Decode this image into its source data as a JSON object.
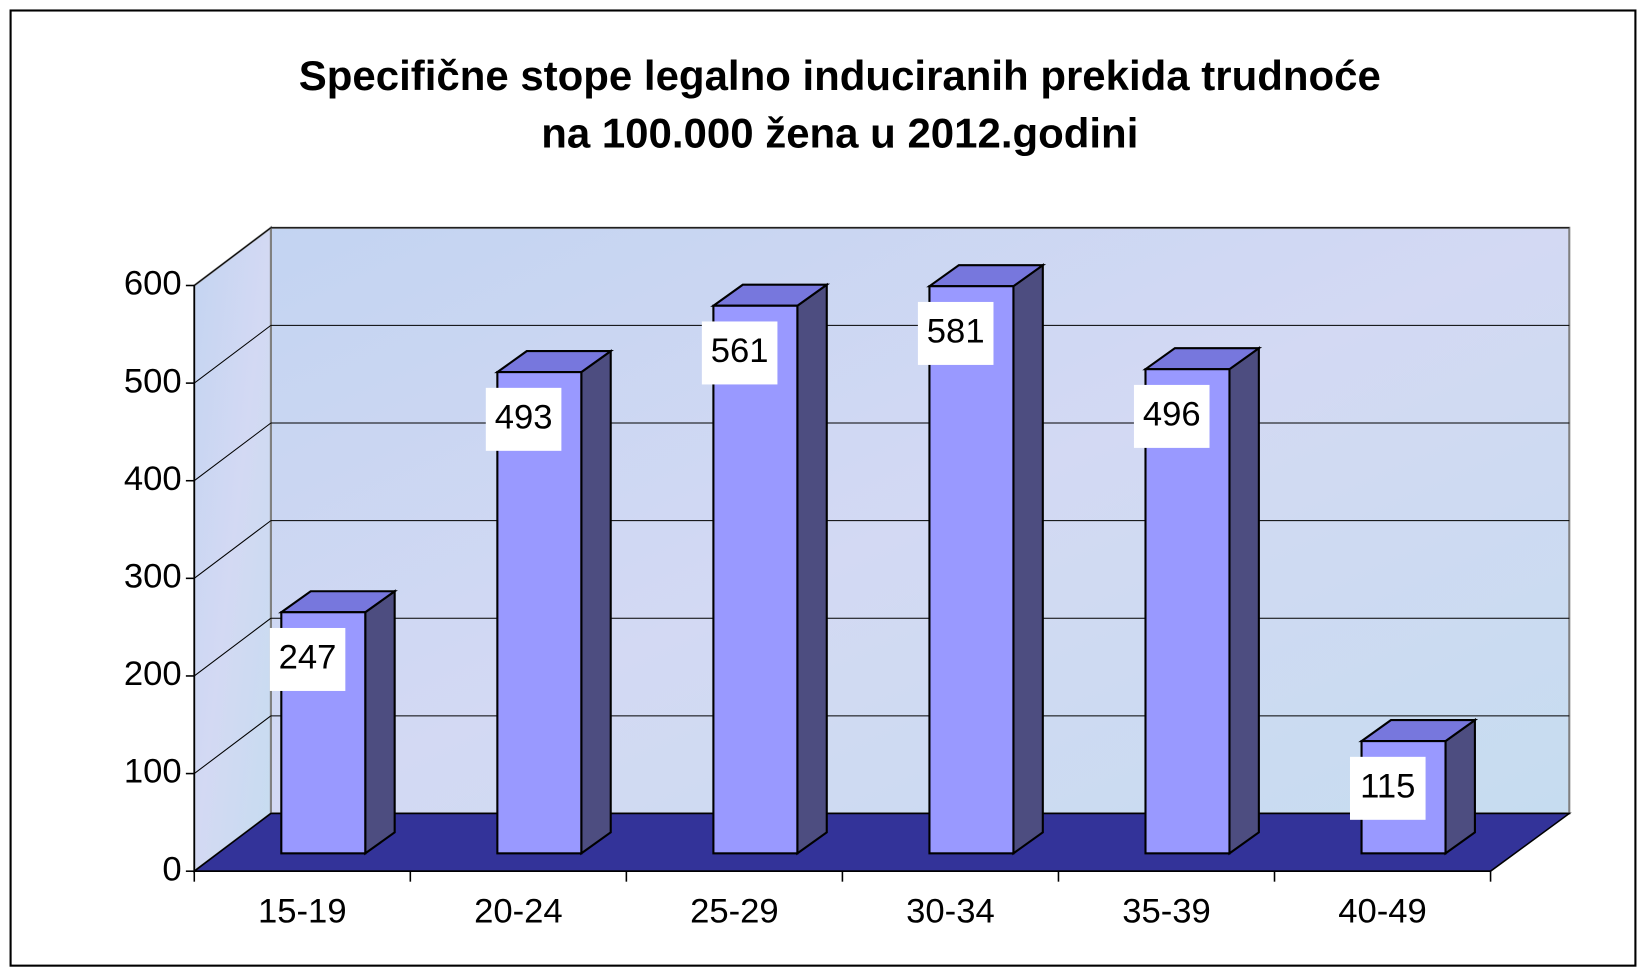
{
  "chart_data": {
    "type": "bar3d",
    "title": [
      "Specifične stope legalno induciranih prekida trudnoće",
      "na 100.000 žena u 2012.godini"
    ],
    "categories": [
      "15-19",
      "20-24",
      "25-29",
      "30-34",
      "35-39",
      "40-49"
    ],
    "values": [
      247,
      493,
      561,
      581,
      496,
      115
    ],
    "color": "#9999ff",
    "side_color": "#4d4d80",
    "top_color": "#7777dd",
    "ylim": [
      0,
      600
    ],
    "yticks": [
      0,
      100,
      200,
      300,
      400,
      500,
      600
    ],
    "grid": true
  }
}
